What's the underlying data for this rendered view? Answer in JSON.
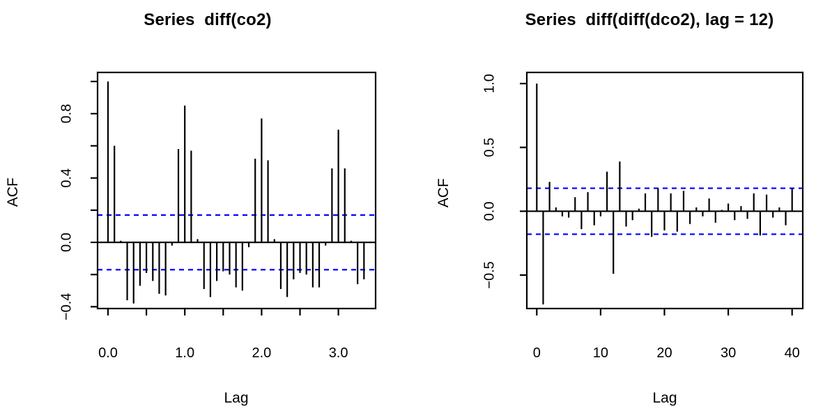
{
  "figure": {
    "background_color": "#ffffff",
    "foreground_color": "#000000",
    "left_chart": {
      "title": "Series  diff(co2)",
      "xlabel": "Lag",
      "ylabel": "ACF"
    },
    "right_chart": {
      "title": "Series  diff(diff(dco2), lag = 12)",
      "xlabel": "Lag",
      "ylabel": "ACF"
    }
  },
  "chart_data": [
    {
      "type": "bar",
      "variant": "acf-stick-plot",
      "name": "acf-diff-co2",
      "title": "Series  diff(co2)",
      "xlabel": "Lag",
      "ylabel": "ACF",
      "grid": false,
      "bar_color": "#000000",
      "x_unit": "years",
      "x_value_per_lag": 0.0833333,
      "x_axis": {
        "range": [
          -0.14,
          3.49
        ],
        "ticks": [
          0,
          0.5,
          1.0,
          1.5,
          2.0,
          2.5,
          3.0
        ],
        "tick_labels": [
          "0.0",
          "",
          "1.0",
          "",
          "2.0",
          "",
          "3.0"
        ]
      },
      "y_axis": {
        "range": [
          -0.41,
          1.06
        ],
        "ticks": [
          -0.4,
          -0.2,
          0.0,
          0.2,
          0.4,
          0.6,
          0.8,
          1.0
        ],
        "tick_labels": [
          "−0.4",
          "",
          "0.0",
          "",
          "0.4",
          "",
          "0.8",
          ""
        ]
      },
      "lags": [
        0,
        1,
        2,
        3,
        4,
        5,
        6,
        7,
        8,
        9,
        10,
        11,
        12,
        13,
        14,
        15,
        16,
        17,
        18,
        19,
        20,
        21,
        22,
        23,
        24,
        25,
        26,
        27,
        28,
        29,
        30,
        31,
        32,
        33,
        34,
        35,
        36,
        37,
        38,
        39,
        40
      ],
      "acf_values": [
        1.0,
        0.6,
        0.01,
        -0.36,
        -0.38,
        -0.27,
        -0.19,
        -0.24,
        -0.32,
        -0.33,
        -0.02,
        0.58,
        0.85,
        0.57,
        0.02,
        -0.29,
        -0.34,
        -0.24,
        -0.18,
        -0.2,
        -0.28,
        -0.3,
        -0.03,
        0.52,
        0.77,
        0.51,
        0.02,
        -0.29,
        -0.34,
        -0.23,
        -0.19,
        -0.2,
        -0.28,
        -0.28,
        -0.02,
        0.46,
        0.7,
        0.46,
        0.01,
        -0.26,
        -0.23
      ],
      "confidence_bounds": {
        "upper": 0.17,
        "lower": -0.17,
        "color": "#0000ff",
        "style": "dashed"
      }
    },
    {
      "type": "bar",
      "variant": "acf-stick-plot",
      "name": "acf-diff-diff-dco2-lag12",
      "title": "Series  diff(diff(dco2), lag = 12)",
      "xlabel": "Lag",
      "ylabel": "ACF",
      "grid": false,
      "bar_color": "#000000",
      "x_unit": "lags",
      "x_value_per_lag": 1,
      "x_axis": {
        "range": [
          -1.6,
          41.7
        ],
        "ticks": [
          0,
          10,
          20,
          30,
          40
        ],
        "tick_labels": [
          "0",
          "10",
          "20",
          "30",
          "40"
        ]
      },
      "y_axis": {
        "range": [
          -0.76,
          1.09
        ],
        "ticks": [
          -0.5,
          0.0,
          0.5,
          1.0
        ],
        "tick_labels": [
          "−0.5",
          "0.0",
          "0.5",
          "1.0"
        ]
      },
      "lags": [
        0,
        1,
        2,
        3,
        4,
        5,
        6,
        7,
        8,
        9,
        10,
        11,
        12,
        13,
        14,
        15,
        16,
        17,
        18,
        19,
        20,
        21,
        22,
        23,
        24,
        25,
        26,
        27,
        28,
        29,
        30,
        31,
        32,
        33,
        34,
        35,
        36,
        37,
        38,
        39,
        40
      ],
      "acf_values": [
        1.0,
        -0.73,
        0.23,
        0.03,
        -0.04,
        -0.05,
        0.11,
        -0.14,
        0.15,
        -0.11,
        -0.04,
        0.31,
        -0.49,
        0.39,
        -0.12,
        -0.07,
        0.02,
        0.14,
        -0.2,
        0.18,
        -0.15,
        0.14,
        -0.16,
        0.16,
        -0.1,
        0.03,
        -0.04,
        0.1,
        -0.09,
        0.01,
        0.06,
        -0.07,
        0.04,
        -0.06,
        0.14,
        -0.19,
        0.13,
        -0.05,
        0.03,
        -0.11,
        0.18
      ],
      "confidence_bounds": {
        "upper": 0.18,
        "lower": -0.18,
        "color": "#0000ff",
        "style": "dashed"
      }
    }
  ]
}
